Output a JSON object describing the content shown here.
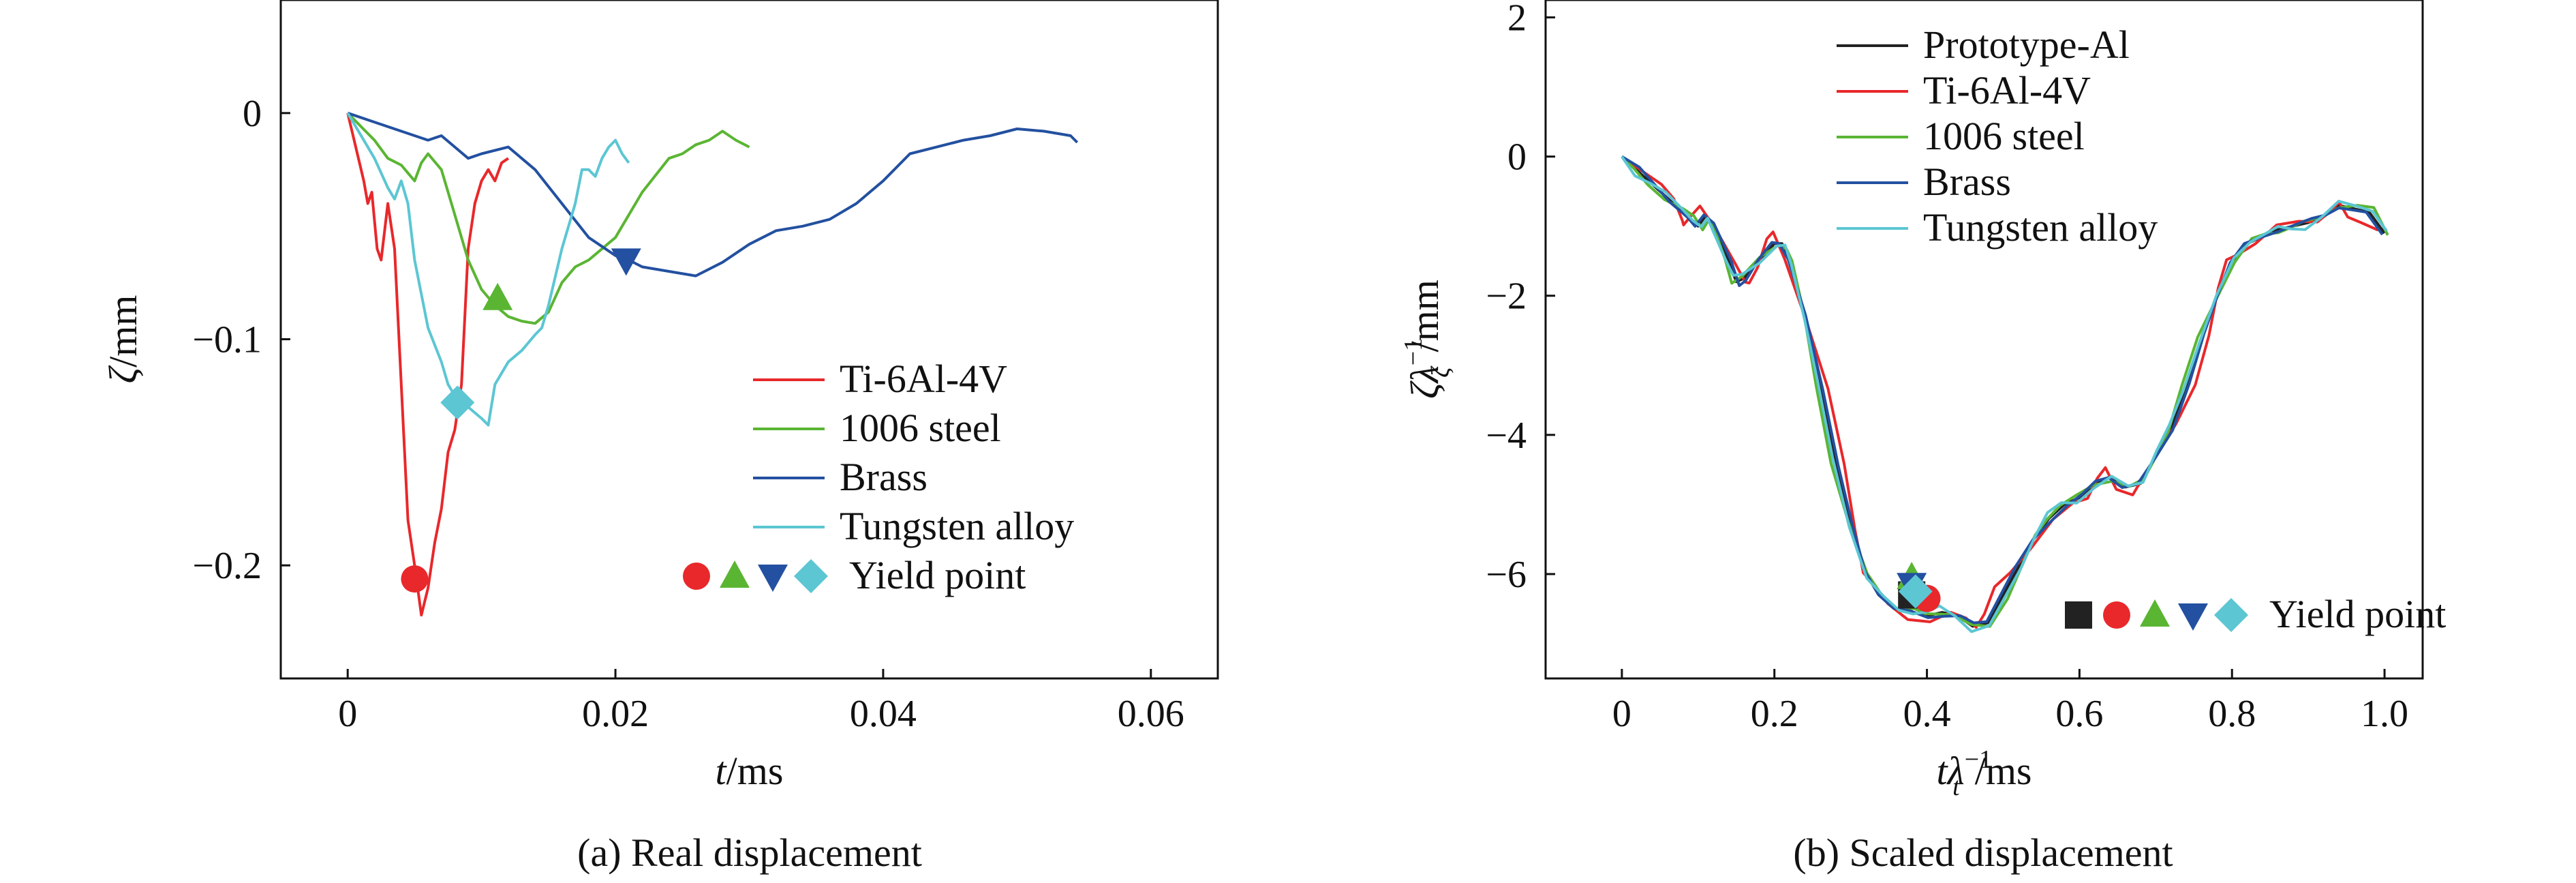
{
  "chart_data": [
    {
      "type": "line",
      "caption": "(a) Real displacement",
      "xlabel_var": "t",
      "xlabel_unit": "/ms",
      "ylabel_var": "ζ",
      "ylabel_unit": "/mm",
      "xlim": [
        -0.005,
        0.065
      ],
      "ylim": [
        -0.25,
        0.05
      ],
      "xticks": [
        0,
        0.02,
        0.04,
        0.06
      ],
      "xtick_labels": [
        "0",
        "0.02",
        "0.04",
        "0.06"
      ],
      "yticks": [
        0,
        -0.1,
        -0.2
      ],
      "ytick_labels": [
        "0",
        "−0.1",
        "−0.2"
      ],
      "legend_position": "lower-right",
      "yield_label": "Yield point",
      "series": [
        {
          "name": "Ti-6Al-4V",
          "color": "#e8282b",
          "x": [
            0,
            0.0012,
            0.0015,
            0.0018,
            0.0022,
            0.0025,
            0.003,
            0.0035,
            0.004,
            0.0045,
            0.005,
            0.0055,
            0.006,
            0.0065,
            0.007,
            0.0075,
            0.008,
            0.0085,
            0.009,
            0.0095,
            0.01,
            0.0105,
            0.011,
            0.0115,
            0.012
          ],
          "y": [
            0,
            -0.03,
            -0.04,
            -0.035,
            -0.06,
            -0.065,
            -0.04,
            -0.06,
            -0.12,
            -0.18,
            -0.2,
            -0.222,
            -0.21,
            -0.19,
            -0.175,
            -0.15,
            -0.14,
            -0.12,
            -0.06,
            -0.04,
            -0.03,
            -0.025,
            -0.03,
            -0.022,
            -0.02
          ],
          "yield": [
            0.005,
            -0.206
          ],
          "marker": "circle"
        },
        {
          "name": "1006 steel",
          "color": "#5ab533",
          "x": [
            0,
            0.002,
            0.003,
            0.004,
            0.005,
            0.0055,
            0.006,
            0.007,
            0.008,
            0.009,
            0.01,
            0.011,
            0.012,
            0.013,
            0.014,
            0.015,
            0.016,
            0.017,
            0.018,
            0.02,
            0.022,
            0.024,
            0.025,
            0.026,
            0.027,
            0.028,
            0.029,
            0.03
          ],
          "y": [
            0,
            -0.012,
            -0.02,
            -0.023,
            -0.03,
            -0.022,
            -0.018,
            -0.025,
            -0.045,
            -0.065,
            -0.078,
            -0.085,
            -0.09,
            -0.092,
            -0.093,
            -0.088,
            -0.075,
            -0.068,
            -0.065,
            -0.055,
            -0.035,
            -0.02,
            -0.018,
            -0.014,
            -0.012,
            -0.008,
            -0.012,
            -0.015
          ],
          "yield": [
            0.0112,
            -0.082
          ],
          "marker": "triangle-up"
        },
        {
          "name": "Brass",
          "color": "#2350a0",
          "x": [
            0,
            0.002,
            0.004,
            0.006,
            0.007,
            0.008,
            0.009,
            0.01,
            0.012,
            0.014,
            0.016,
            0.018,
            0.02,
            0.021,
            0.022,
            0.024,
            0.026,
            0.028,
            0.03,
            0.032,
            0.034,
            0.036,
            0.038,
            0.04,
            0.042,
            0.044,
            0.046,
            0.048,
            0.05,
            0.052,
            0.054,
            0.0545
          ],
          "y": [
            0,
            -0.004,
            -0.008,
            -0.012,
            -0.01,
            -0.015,
            -0.02,
            -0.018,
            -0.015,
            -0.025,
            -0.04,
            -0.055,
            -0.063,
            -0.065,
            -0.068,
            -0.07,
            -0.072,
            -0.066,
            -0.058,
            -0.052,
            -0.05,
            -0.047,
            -0.04,
            -0.03,
            -0.018,
            -0.015,
            -0.012,
            -0.01,
            -0.007,
            -0.008,
            -0.01,
            -0.013
          ],
          "yield": [
            0.0208,
            -0.065
          ],
          "marker": "triangle-down"
        },
        {
          "name": "Tungsten alloy",
          "color": "#5cc6d3",
          "x": [
            0,
            0.001,
            0.002,
            0.003,
            0.0035,
            0.004,
            0.0045,
            0.005,
            0.006,
            0.007,
            0.0075,
            0.008,
            0.009,
            0.01,
            0.0105,
            0.011,
            0.012,
            0.013,
            0.014,
            0.0145,
            0.015,
            0.016,
            0.017,
            0.0175,
            0.018,
            0.0185,
            0.019,
            0.0195,
            0.02,
            0.0205,
            0.021
          ],
          "y": [
            0,
            -0.01,
            -0.02,
            -0.033,
            -0.038,
            -0.03,
            -0.04,
            -0.065,
            -0.095,
            -0.11,
            -0.12,
            -0.125,
            -0.13,
            -0.135,
            -0.138,
            -0.12,
            -0.11,
            -0.105,
            -0.098,
            -0.095,
            -0.085,
            -0.06,
            -0.04,
            -0.025,
            -0.025,
            -0.028,
            -0.02,
            -0.015,
            -0.012,
            -0.018,
            -0.022
          ],
          "yield": [
            0.0082,
            -0.128
          ],
          "marker": "diamond"
        }
      ]
    },
    {
      "type": "line",
      "caption": "(b) Scaled displacement",
      "xlabel_var": "tλ",
      "xlabel_sub": "t",
      "xlabel_sup": "−1",
      "xlabel_unit": "/ms",
      "ylabel_var": "ζλ",
      "ylabel_sub": "ζ",
      "ylabel_sup": "−1",
      "ylabel_unit": "/mm",
      "xlim": [
        -0.1,
        1.05
      ],
      "ylim": [
        -7.5,
        2.25
      ],
      "xticks": [
        0,
        0.2,
        0.4,
        0.6,
        0.8,
        1.0
      ],
      "xtick_labels": [
        "0",
        "0.2",
        "0.4",
        "0.6",
        "0.8",
        "1.0"
      ],
      "yticks": [
        2,
        0,
        -2,
        -4,
        -6
      ],
      "ytick_labels": [
        "2",
        "0",
        "−2",
        "−4",
        "−6"
      ],
      "legend_position": "upper-left",
      "yield_label": "Yield point",
      "base_x": [
        0,
        0.02,
        0.04,
        0.06,
        0.08,
        0.09,
        0.1,
        0.11,
        0.12,
        0.14,
        0.15,
        0.16,
        0.18,
        0.2,
        0.21,
        0.22,
        0.24,
        0.26,
        0.28,
        0.3,
        0.32,
        0.34,
        0.36,
        0.38,
        0.4,
        0.42,
        0.44,
        0.46,
        0.48,
        0.5,
        0.52,
        0.54,
        0.56,
        0.58,
        0.6,
        0.62,
        0.64,
        0.66,
        0.68,
        0.7,
        0.72,
        0.74,
        0.76,
        0.78,
        0.8,
        0.82,
        0.84,
        0.86,
        0.88,
        0.9,
        0.92,
        0.94,
        0.96,
        0.98,
        1.0
      ],
      "base_y": [
        0,
        -0.2,
        -0.4,
        -0.6,
        -0.8,
        -0.9,
        -1.0,
        -0.85,
        -1.0,
        -1.5,
        -1.8,
        -1.75,
        -1.5,
        -1.25,
        -1.25,
        -1.5,
        -2.3,
        -3.3,
        -4.4,
        -5.3,
        -6.0,
        -6.3,
        -6.5,
        -6.55,
        -6.6,
        -6.55,
        -6.6,
        -6.75,
        -6.7,
        -6.3,
        -5.9,
        -5.5,
        -5.2,
        -5.0,
        -4.9,
        -4.7,
        -4.6,
        -4.75,
        -4.7,
        -4.3,
        -3.9,
        -3.3,
        -2.6,
        -2.0,
        -1.5,
        -1.25,
        -1.15,
        -1.05,
        -1.0,
        -0.95,
        -0.85,
        -0.7,
        -0.75,
        -0.8,
        -1.1
      ],
      "series": [
        {
          "name": "Prototype-Al",
          "color": "#222222",
          "offset": [
            0,
            0,
            0
          ],
          "yield": [
            0.38,
            -6.3
          ],
          "marker": "square"
        },
        {
          "name": "Ti-6Al-4V",
          "color": "#e8282b",
          "offset": [
            0.012,
            -0.08,
            0.15
          ],
          "yield": [
            0.4,
            -6.35
          ],
          "marker": "circle"
        },
        {
          "name": "1006 steel",
          "color": "#5ab533",
          "offset": [
            -0.006,
            0.05,
            -0.05
          ],
          "yield": [
            0.38,
            -6.05
          ],
          "marker": "triangle-up"
        },
        {
          "name": "Brass",
          "color": "#2350a0",
          "offset": [
            0.004,
            0.03,
            0.05
          ],
          "yield": [
            0.38,
            -6.15
          ],
          "marker": "triangle-down"
        },
        {
          "name": "Tungsten alloy",
          "color": "#5cc6d3",
          "offset": [
            -0.004,
            -0.04,
            -0.1
          ],
          "yield": [
            0.385,
            -6.25
          ],
          "marker": "diamond"
        }
      ]
    }
  ]
}
